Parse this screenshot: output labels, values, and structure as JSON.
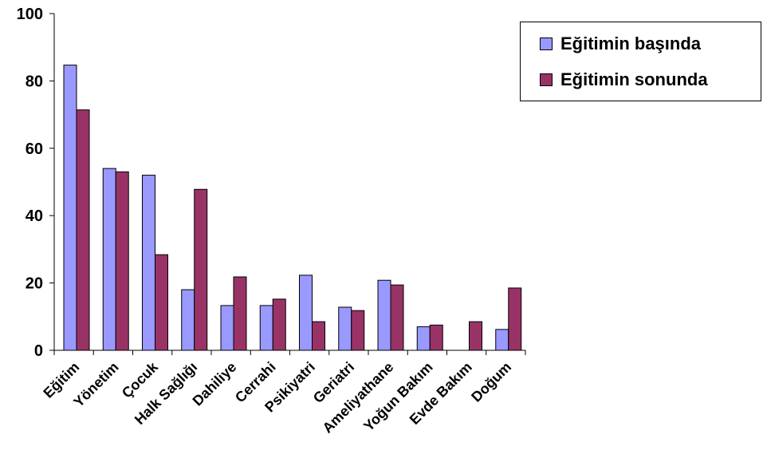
{
  "chart_data": {
    "type": "bar",
    "categories": [
      "Eğitim",
      "Yönetim",
      "Çocuk",
      "Halk Sağlığı",
      "Dahiliye",
      "Cerrahi",
      "Psikiyatri",
      "Geriatri",
      "Ameliyathane",
      "Yoğun Bakım",
      "Evde Bakım",
      "Doğum"
    ],
    "series": [
      {
        "name": "Eğitimin başında",
        "color": "#9999ff",
        "values": [
          84.7,
          54.0,
          52.0,
          18.0,
          13.3,
          13.3,
          22.3,
          12.8,
          20.8,
          7.0,
          0,
          6.2
        ]
      },
      {
        "name": "Eğitimin sonunda",
        "color": "#993366",
        "values": [
          71.4,
          53.0,
          28.4,
          47.8,
          21.8,
          15.2,
          8.5,
          11.8,
          19.4,
          7.5,
          8.5,
          18.5
        ]
      }
    ],
    "yticks": [
      "0",
      "20",
      "40",
      "60",
      "80",
      "100"
    ],
    "ylim": [
      0,
      100
    ],
    "title": "",
    "xlabel": "",
    "ylabel": "",
    "grid": false,
    "legend_position": "top-right"
  }
}
